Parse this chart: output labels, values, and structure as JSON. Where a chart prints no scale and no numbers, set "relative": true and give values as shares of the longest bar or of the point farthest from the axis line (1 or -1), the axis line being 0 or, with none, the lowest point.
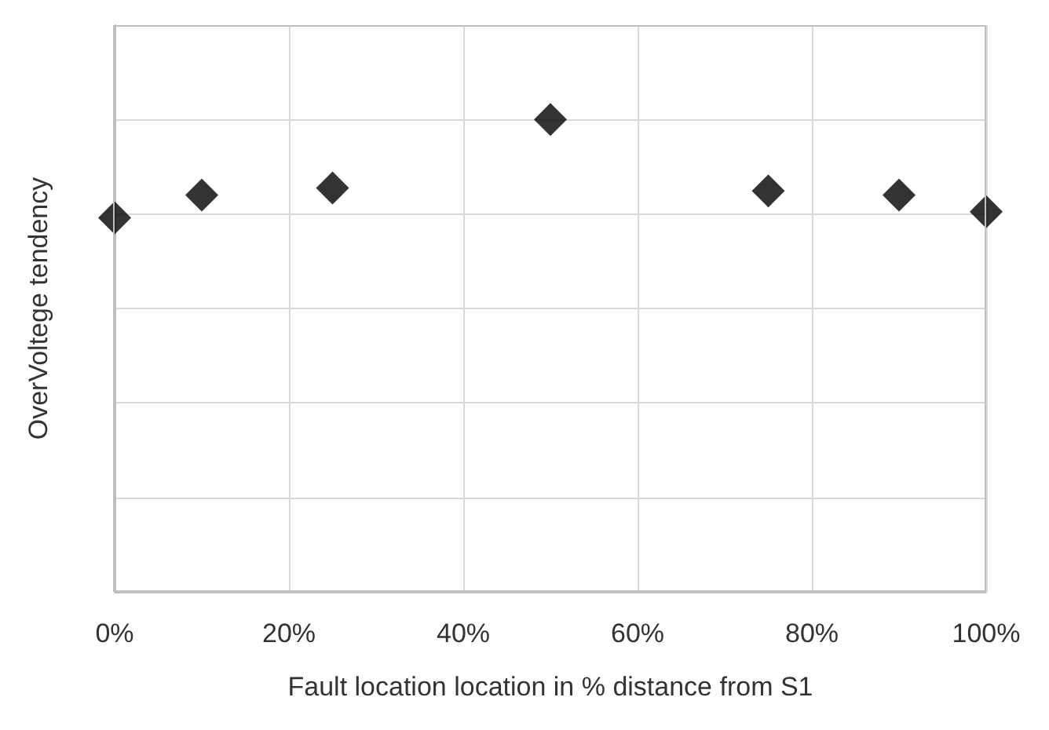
{
  "chart_data": {
    "type": "scatter",
    "xlabel": "Fault location location in % distance from S1",
    "ylabel": "OverVoltege tendency",
    "x": [
      0,
      10,
      25,
      50,
      75,
      90,
      100
    ],
    "values": [
      0.792,
      0.84,
      0.855,
      1,
      0.849,
      0.84,
      0.805
    ],
    "color": "#000000",
    "marker": "diamond",
    "relative": true,
    "grid": true,
    "xlim": [
      0,
      100
    ],
    "xticks": [
      {
        "value": 0,
        "label": "0%"
      },
      {
        "value": 20,
        "label": "20%"
      },
      {
        "value": 40,
        "label": "40%"
      },
      {
        "value": 60,
        "label": "60%"
      },
      {
        "value": 80,
        "label": "80%"
      },
      {
        "value": 100,
        "label": "100%"
      }
    ]
  }
}
